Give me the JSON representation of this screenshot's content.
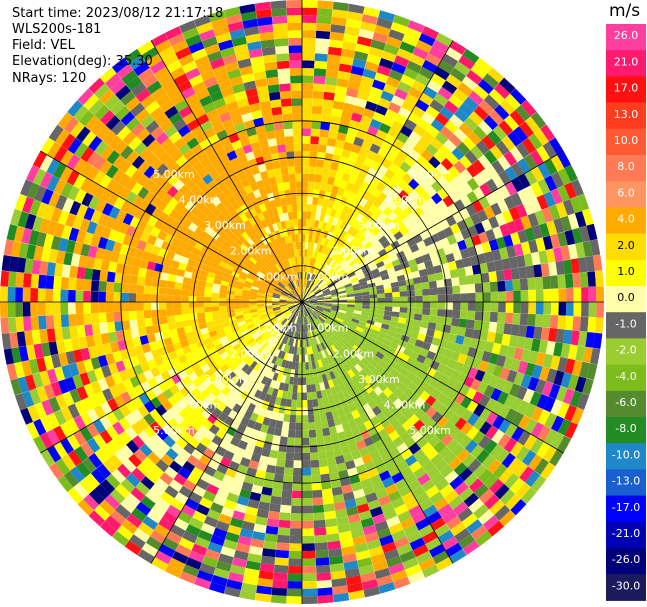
{
  "info": {
    "start_time": "Start time: 2023/08/12 21:17:18",
    "instrument": "WLS200s-181",
    "field": "Field: VEL",
    "elevation": "Elevation(deg): 35.30",
    "nrays": "NRays: 120"
  },
  "chart_data": {
    "type": "heatmap",
    "title": "Start time: 2023/08/12 21:17:18",
    "instrument": "WLS200s-181",
    "field": "VEL",
    "elevation_deg": 35.3,
    "nrays": 120,
    "units": "m/s",
    "range_ring_labels": [
      "1.00km",
      "2.00km",
      "3.00km",
      "4.00km",
      "5.00km"
    ],
    "range_rings_km": [
      1,
      2,
      3,
      4,
      5
    ],
    "max_range_km": 5.0,
    "colorbar": {
      "label": "m/s",
      "ticks": [
        "26.0",
        "21.0",
        "17.0",
        "13.0",
        "10.0",
        "8.0",
        "6.0",
        "4.0",
        "2.0",
        "1.0",
        "0.0",
        "-1.0",
        "-2.0",
        "-4.0",
        "-6.0",
        "-8.0",
        "-10.0",
        "-13.0",
        "-17.0",
        "-21.0",
        "-26.0",
        "-30.0"
      ],
      "colors": [
        "#ff3fa0",
        "#ff1a6e",
        "#ff1111",
        "#ff3c1e",
        "#ff5a32",
        "#ff7a55",
        "#ff9560",
        "#ffaa00",
        "#ffdd00",
        "#ffff00",
        "#ffffaa",
        "#666666",
        "#9acd32",
        "#7cbc1c",
        "#558b2f",
        "#228b22",
        "#1e88c8",
        "#1a5fd0",
        "#0000ff",
        "#0000b4",
        "#00007a",
        "#1a1a5e"
      ]
    },
    "velocity_pattern": {
      "near_gate_wind_direction_deg": 135,
      "near_gate_amplitude_ms": 3.0,
      "note": "positive (yellow) NW half, negative (green) SE half; noisy outer gates"
    }
  }
}
